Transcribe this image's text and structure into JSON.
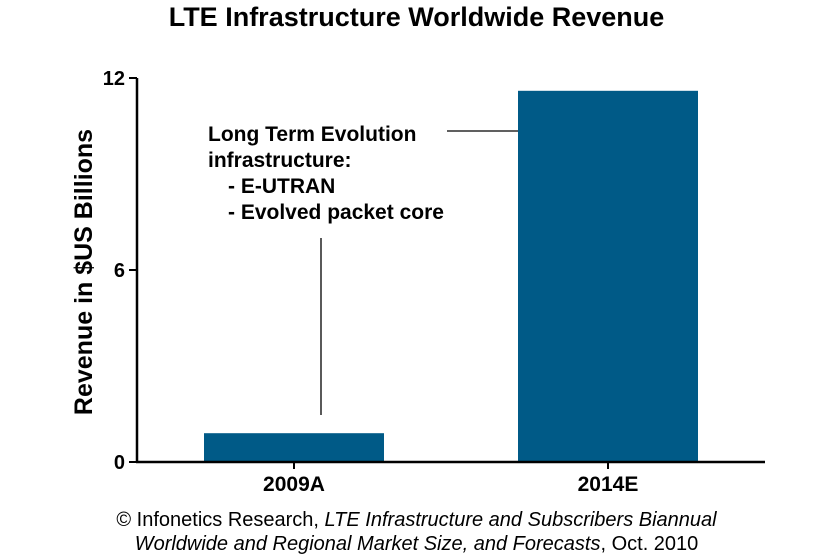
{
  "chart_data": {
    "type": "bar",
    "title": "LTE Infrastructure Worldwide Revenue",
    "ylabel": "Revenue in $US Billions",
    "xlabel": "",
    "categories": [
      "2009A",
      "2014E"
    ],
    "values": [
      0.9,
      11.6
    ],
    "ylim": [
      0,
      12
    ],
    "yticks": [
      "0",
      "6",
      "12"
    ],
    "grid": false,
    "bar_color": "#005a87",
    "annotation": {
      "line1": "Long Term Evolution",
      "line2": "infrastructure:",
      "bullet1": "- E-UTRAN",
      "bullet2": "- Evolved packet core"
    }
  },
  "source": {
    "prefix": "© Infonetics Research, ",
    "title_line1": "LTE Infrastructure and Subscribers Biannual",
    "title_line2": "Worldwide and Regional Market Size, and Forecasts",
    "suffix": ", Oct. 2010"
  }
}
